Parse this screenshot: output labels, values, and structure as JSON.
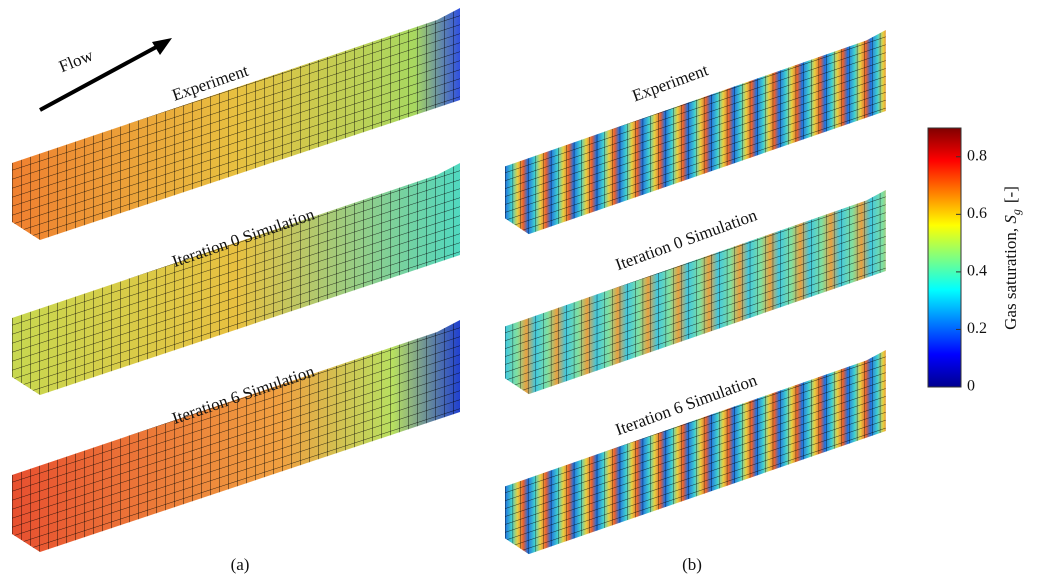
{
  "flow_label": "Flow",
  "panels": [
    {
      "label": "(a)",
      "cores": [
        "Experiment",
        "Iteration 0 Simulation",
        "Iteration 6 Simulation"
      ]
    },
    {
      "label": "(b)",
      "cores": [
        "Experiment",
        "Iteration 0 Simulation",
        "Iteration 6 Simulation"
      ]
    }
  ],
  "colorbar": {
    "label": "Gas saturation,",
    "symbol": "S",
    "subscript": "g",
    "unit": "[-]",
    "ylim": [
      0,
      0.9
    ],
    "yticks": [
      0,
      0.2,
      0.4,
      0.6,
      0.8
    ]
  }
}
